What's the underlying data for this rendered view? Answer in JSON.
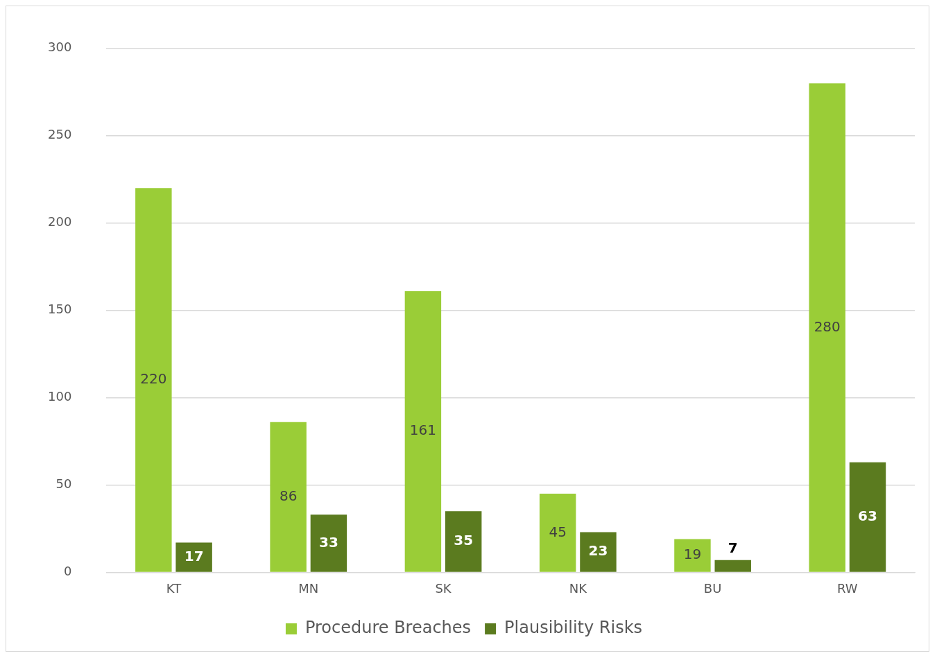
{
  "chart_data": {
    "type": "bar",
    "categories": [
      "KT",
      "MN",
      "SK",
      "NK",
      "BU",
      "RW"
    ],
    "series": [
      {
        "name": "Procedure Breaches",
        "color": "#9acd37",
        "values": [
          220,
          86,
          161,
          45,
          19,
          280
        ]
      },
      {
        "name": "Plausibility Risks",
        "color": "#5b7b1f",
        "values": [
          17,
          33,
          35,
          23,
          7,
          63
        ]
      }
    ],
    "ylim": [
      0,
      300
    ],
    "yticks": [
      0,
      50,
      100,
      150,
      200,
      250,
      300
    ],
    "grid": "y",
    "legend": "bottom",
    "data_labels": true
  }
}
